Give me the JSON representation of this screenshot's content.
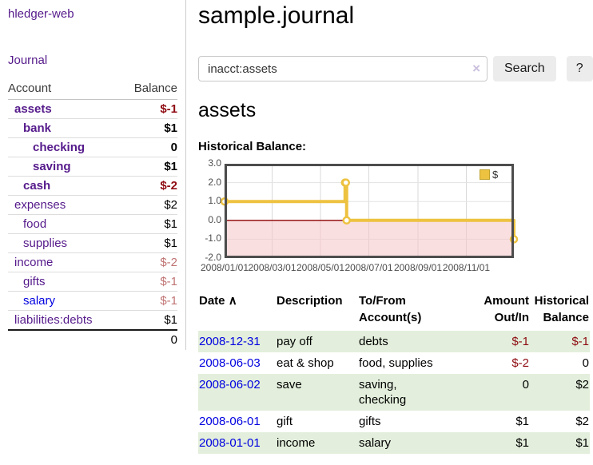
{
  "app": {
    "brand": "hledger-web",
    "nav_journal": "Journal"
  },
  "sidebar": {
    "headers": {
      "account": "Account",
      "balance": "Balance"
    },
    "accounts": [
      {
        "name": "assets",
        "balance": "$-1"
      },
      {
        "name": "bank",
        "balance": "$1"
      },
      {
        "name": "checking",
        "balance": "0"
      },
      {
        "name": "saving",
        "balance": "$1"
      },
      {
        "name": "cash",
        "balance": "$-2"
      },
      {
        "name": "expenses",
        "balance": "$2"
      },
      {
        "name": "food",
        "balance": "$1"
      },
      {
        "name": "supplies",
        "balance": "$1"
      },
      {
        "name": "income",
        "balance": "$-2"
      },
      {
        "name": "gifts",
        "balance": "$-1"
      },
      {
        "name": "salary",
        "balance": "$-1"
      },
      {
        "name": "liabilities:debts",
        "balance": "$1"
      }
    ],
    "total": "0"
  },
  "header": {
    "title": "sample.journal"
  },
  "search": {
    "value": "inacct:assets",
    "clear_icon": "×",
    "button": "Search",
    "help_button": "?"
  },
  "account_page": {
    "heading": "assets",
    "chart_label": "Historical Balance:"
  },
  "chart_data": {
    "type": "line",
    "title": "Historical Balance:",
    "style": "steps",
    "series": [
      {
        "name": "$",
        "color": "#edc240",
        "points": [
          [
            "2008-01-01",
            1
          ],
          [
            "2008-06-01",
            2
          ],
          [
            "2008-06-02",
            2
          ],
          [
            "2008-06-03",
            0
          ],
          [
            "2008-12-31",
            -1
          ]
        ]
      }
    ],
    "x_range": [
      "2008-01-01",
      "2008-12-31"
    ],
    "ylim": [
      -2,
      3
    ],
    "x_ticks": [
      "2008/01/01",
      "2008/03/01",
      "2008/05/01",
      "2008/07/01",
      "2008/09/01",
      "2008/11/01"
    ],
    "y_ticks": [
      "3.0",
      "2.0",
      "1.0",
      "0.0",
      "-1.0",
      "-2.0"
    ],
    "grid": true,
    "legend_position": "top-right",
    "negative_region_color": "#f5c4c8",
    "zero_line_color": "#8b0000",
    "border_color": "#4d4d4d"
  },
  "register": {
    "headers": {
      "date": "Date",
      "sort_indicator": "∧",
      "description": "Description",
      "accounts": "To/From Account(s)",
      "amount": "Amount Out/In",
      "balance": "Historical Balance"
    },
    "rows": [
      {
        "date": "2008-12-31",
        "description": "pay off",
        "accounts": "debts",
        "amount": "$-1",
        "balance": "$-1"
      },
      {
        "date": "2008-06-03",
        "description": "eat & shop",
        "accounts": "food, supplies",
        "amount": "$-2",
        "balance": "0"
      },
      {
        "date": "2008-06-02",
        "description": "save",
        "accounts": "saving,\nchecking",
        "amount": "0",
        "balance": "$2"
      },
      {
        "date": "2008-06-01",
        "description": "gift",
        "accounts": "gifts",
        "amount": "$1",
        "balance": "$2"
      },
      {
        "date": "2008-01-01",
        "description": "income",
        "accounts": "salary",
        "amount": "$1",
        "balance": "$1"
      }
    ]
  }
}
